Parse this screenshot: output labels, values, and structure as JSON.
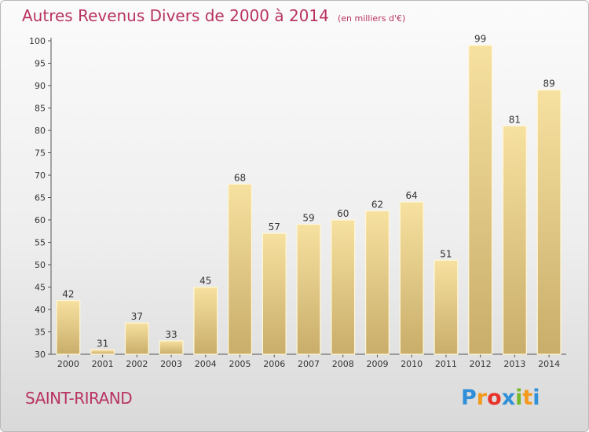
{
  "header": {
    "title": "Autres Revenus Divers de 2000 à 2014",
    "unit": "(en milliers d'€)"
  },
  "footer": {
    "commune": "SAINT-RIRAND",
    "brand_letters": [
      "P",
      "r",
      "o",
      "x",
      "i",
      "t",
      "i"
    ],
    "brand_colors": [
      "#2f8fd8",
      "#f39a1e",
      "#e8332a",
      "#2f8fd8",
      "#77b82a",
      "#f39a1e",
      "#2f8fd8"
    ]
  },
  "colors": {
    "title": "#b83363",
    "bar_top": "#f7e1a0",
    "bar_bottom": "#c9ad6a",
    "bar_border": "#fff7d6"
  },
  "chart_data": {
    "type": "bar",
    "categories": [
      "2000",
      "2001",
      "2002",
      "2003",
      "2004",
      "2005",
      "2006",
      "2007",
      "2008",
      "2009",
      "2010",
      "2011",
      "2012",
      "2013",
      "2014"
    ],
    "values": [
      42,
      31,
      37,
      33,
      45,
      68,
      57,
      59,
      60,
      62,
      64,
      51,
      99,
      81,
      89
    ],
    "title": "Autres Revenus Divers de 2000 à 2014",
    "xlabel": "",
    "ylabel": "",
    "ylim": [
      30,
      100
    ],
    "yticks": [
      30,
      35,
      40,
      45,
      50,
      55,
      60,
      65,
      70,
      75,
      80,
      85,
      90,
      95,
      100
    ],
    "grid": false,
    "data_labels": true
  }
}
